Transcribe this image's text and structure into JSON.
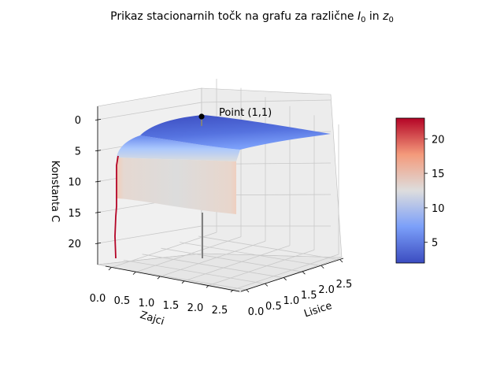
{
  "chart_data": {
    "type": "surface3d",
    "title": "Prikaz stacionarnih točk na grafu za različne I0 in z0",
    "title_parts": {
      "prefix": "Prikaz stacionarnih točk na grafu za različne ",
      "var1": "I",
      "sub1": "0",
      "mid": " in ",
      "var2": "z",
      "sub2": "0"
    },
    "xlabel": "Zajci",
    "ylabel": "Lisice",
    "zlabel": "Konstanta C",
    "x_ticks": [
      "0.0",
      "0.5",
      "1.0",
      "1.5",
      "2.0",
      "2.5"
    ],
    "y_ticks": [
      "0.0",
      "0.5",
      "1.0",
      "1.5",
      "2.0",
      "2.5"
    ],
    "z_ticks": [
      "0",
      "5",
      "10",
      "15",
      "20"
    ],
    "xlim": [
      0,
      2.5
    ],
    "ylim": [
      0,
      2.5
    ],
    "zlim": [
      0,
      23
    ],
    "z_axis_inverted": true,
    "colormap": "coolwarm",
    "colorbar_ticks": [
      "5",
      "10",
      "15",
      "20"
    ],
    "colorbar_range": [
      2,
      23
    ],
    "annotation": {
      "text": "Point (1,1)",
      "x": 1,
      "y": 1,
      "z": 2
    },
    "grid": true
  },
  "colors": {
    "cmap_low": "#3b4cc0",
    "cmap_mid": "#dddddd",
    "cmap_high": "#b40426",
    "pane_left": "#f0f0f0",
    "pane_right": "#ececec",
    "pane_floor": "#e6e6e6",
    "grid": "#c8c8c8",
    "stem": "#808080",
    "marker": "#000000"
  }
}
